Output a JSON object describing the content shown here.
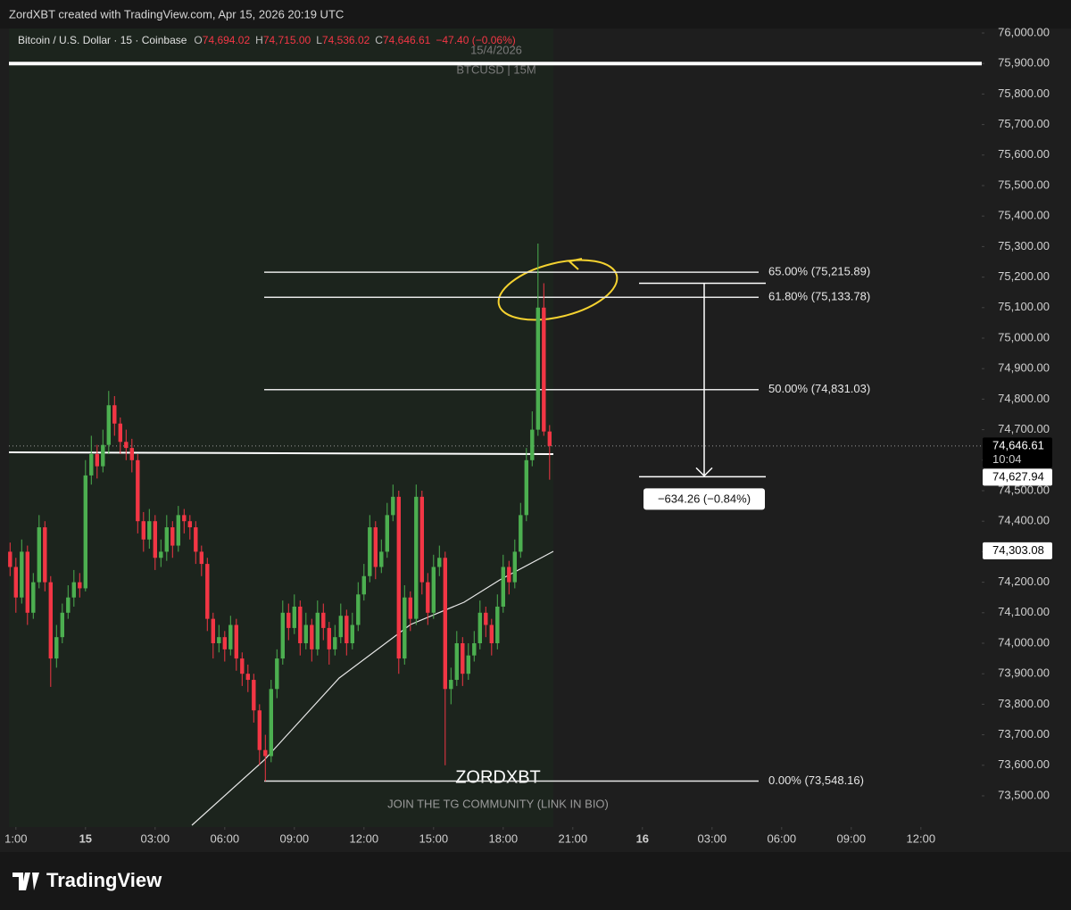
{
  "chart_data": {
    "type": "candlestick",
    "header": "ZordXBT created with TradingView.com, Apr 15, 2026 20:19 UTC",
    "legend": {
      "symbol": "Bitcoin / U.S. Dollar · 15 · Coinbase",
      "o": "O",
      "open": "74,694.02",
      "h": "H",
      "high": "74,715.00",
      "l": "L",
      "low": "74,536.02",
      "c": "C",
      "close": "74,646.61",
      "change": "−47.40 (−0.06%)"
    },
    "watermark": [
      "15/4/2026",
      "BTCUSD | 15M"
    ],
    "signature": "ZORDXBT",
    "promo": "JOIN THE TG COMMUNITY (LINK IN BIO)",
    "brand": "TradingView",
    "colors": {
      "up": "#4caf50",
      "down": "#f23645"
    },
    "xlim": [
      -3.3,
      38.7
    ],
    "ylim": [
      73400,
      76000
    ],
    "xticks": [
      {
        "value": -3,
        "label": "1:00"
      },
      {
        "value": 0,
        "label": "15"
      },
      {
        "value": 3,
        "label": "03:00"
      },
      {
        "value": 6,
        "label": "06:00"
      },
      {
        "value": 9,
        "label": "09:00"
      },
      {
        "value": 12,
        "label": "12:00"
      },
      {
        "value": 15,
        "label": "15:00"
      },
      {
        "value": 18,
        "label": "18:00"
      },
      {
        "value": 21,
        "label": "21:00"
      },
      {
        "value": 24,
        "label": "16"
      },
      {
        "value": 27,
        "label": "03:00"
      },
      {
        "value": 30,
        "label": "06:00"
      },
      {
        "value": 33,
        "label": "09:00"
      },
      {
        "value": 36,
        "label": "12:00"
      }
    ],
    "yticks": [
      {
        "value": 76000,
        "label": "76,000.00"
      },
      {
        "value": 75900,
        "label": "75,900.00"
      },
      {
        "value": 75800,
        "label": "75,800.00"
      },
      {
        "value": 75700,
        "label": "75,700.00"
      },
      {
        "value": 75600,
        "label": "75,600.00"
      },
      {
        "value": 75500,
        "label": "75,500.00"
      },
      {
        "value": 75400,
        "label": "75,400.00"
      },
      {
        "value": 75300,
        "label": "75,300.00"
      },
      {
        "value": 75200,
        "label": "75,200.00"
      },
      {
        "value": 75100,
        "label": "75,100.00"
      },
      {
        "value": 75000,
        "label": "75,000.00"
      },
      {
        "value": 74900,
        "label": "74,900.00"
      },
      {
        "value": 74800,
        "label": "74,800.00"
      },
      {
        "value": 74700,
        "label": "74,700.00"
      },
      {
        "value": 74600,
        "label": "74,600.00"
      },
      {
        "value": 74500,
        "label": "74,500.00"
      },
      {
        "value": 74400,
        "label": "74,400.00"
      },
      {
        "value": 74300,
        "label": "74,300.00"
      },
      {
        "value": 74200,
        "label": "74,200.00"
      },
      {
        "value": 74100,
        "label": "74,100.00"
      },
      {
        "value": 74000,
        "label": "74,000.00"
      },
      {
        "value": 73900,
        "label": "73,900.00"
      },
      {
        "value": 73800,
        "label": "73,800.00"
      },
      {
        "value": 73700,
        "label": "73,700.00"
      },
      {
        "value": 73600,
        "label": "73,600.00"
      },
      {
        "value": 73500,
        "label": "73,500.00"
      }
    ],
    "resistance": 75900,
    "fib_levels": [
      {
        "value": 75215.89,
        "label": "65.00% (75,215.89)"
      },
      {
        "value": 75133.78,
        "label": "61.80% (75,133.78)"
      },
      {
        "value": 74831.03,
        "label": "50.00% (74,831.03)"
      },
      {
        "value": 73548.16,
        "label": "0.00% (73,548.16)"
      }
    ],
    "price_badges": [
      {
        "value": 74646.61,
        "label": "74,646.61",
        "sub": "10:04"
      },
      {
        "value": 74627.94,
        "label": "74,627.94"
      },
      {
        "value": 74303.08,
        "label": "74,303.08"
      }
    ],
    "measure": {
      "top": 75180,
      "bottom": 74545.74,
      "label": "−634.26 (−0.84%)"
    },
    "x": [
      -3.25,
      -3,
      -2.75,
      -2.5,
      -2.25,
      -2,
      -1.75,
      -1.5,
      -1.25,
      -1,
      -0.75,
      -0.5,
      -0.25,
      0,
      0.25,
      0.5,
      0.75,
      1,
      1.25,
      1.5,
      1.75,
      2,
      2.25,
      2.5,
      2.75,
      3,
      3.25,
      3.5,
      3.75,
      4,
      4.25,
      4.5,
      4.75,
      5,
      5.25,
      5.5,
      5.75,
      6,
      6.25,
      6.5,
      6.75,
      7,
      7.25,
      7.5,
      7.75,
      8,
      8.25,
      8.5,
      8.75,
      9,
      9.25,
      9.5,
      9.75,
      10,
      10.25,
      10.5,
      10.75,
      11,
      11.25,
      11.5,
      11.75,
      12,
      12.25,
      12.5,
      12.75,
      13,
      13.25,
      13.5,
      13.75,
      14,
      14.25,
      14.5,
      14.75,
      15,
      15.25,
      15.5,
      15.75,
      16,
      16.25,
      16.5,
      16.75,
      17,
      17.25,
      17.5,
      17.75,
      18,
      18.25,
      18.5,
      18.75,
      19,
      19.25,
      19.5,
      19.75,
      20
    ],
    "candles": [
      [
        74300,
        74330,
        74220,
        74250
      ],
      [
        74250,
        74280,
        74100,
        74150
      ],
      [
        74150,
        74340,
        74130,
        74300
      ],
      [
        74300,
        74320,
        74060,
        74100
      ],
      [
        74100,
        74230,
        74080,
        74200
      ],
      [
        74200,
        74420,
        74180,
        74380
      ],
      [
        74380,
        74400,
        74170,
        74200
      ],
      [
        74200,
        74220,
        73857,
        73950
      ],
      [
        73950,
        74060,
        73920,
        74020
      ],
      [
        74020,
        74130,
        74000,
        74100
      ],
      [
        74100,
        74190,
        74080,
        74150
      ],
      [
        74150,
        74240,
        74120,
        74200
      ],
      [
        74200,
        74230,
        74150,
        74180
      ],
      [
        74180,
        74600,
        74170,
        74550
      ],
      [
        74550,
        74680,
        74520,
        74620
      ],
      [
        74620,
        74650,
        74540,
        74580
      ],
      [
        74580,
        74700,
        74560,
        74650
      ],
      [
        74650,
        74827,
        74620,
        74780
      ],
      [
        74780,
        74810,
        74680,
        74720
      ],
      [
        74720,
        74740,
        74620,
        74660
      ],
      [
        74660,
        74700,
        74600,
        74640
      ],
      [
        74640,
        74670,
        74560,
        74600
      ],
      [
        74600,
        74620,
        74360,
        74400
      ],
      [
        74400,
        74430,
        74300,
        74340
      ],
      [
        74340,
        74440,
        74310,
        74400
      ],
      [
        74400,
        74420,
        74240,
        74280
      ],
      [
        74280,
        74340,
        74250,
        74300
      ],
      [
        74300,
        74420,
        74270,
        74380
      ],
      [
        74380,
        74400,
        74280,
        74320
      ],
      [
        74320,
        74450,
        74300,
        74420
      ],
      [
        74420,
        74440,
        74360,
        74400
      ],
      [
        74400,
        74420,
        74340,
        74380
      ],
      [
        74380,
        74400,
        74260,
        74300
      ],
      [
        74300,
        74320,
        74220,
        74260
      ],
      [
        74260,
        74280,
        74040,
        74080
      ],
      [
        74080,
        74100,
        73950,
        74000
      ],
      [
        74000,
        74060,
        73970,
        74020
      ],
      [
        74020,
        74040,
        73940,
        73980
      ],
      [
        73980,
        74090,
        73960,
        74060
      ],
      [
        74060,
        74080,
        73910,
        73950
      ],
      [
        73950,
        73970,
        73860,
        73900
      ],
      [
        73900,
        73930,
        73840,
        73880
      ],
      [
        73880,
        73900,
        73740,
        73780
      ],
      [
        73780,
        73800,
        73600,
        73650
      ],
      [
        73650,
        73700,
        73548.16,
        73630
      ],
      [
        73630,
        73880,
        73610,
        73850
      ],
      [
        73850,
        73980,
        73820,
        73950
      ],
      [
        73950,
        74140,
        73930,
        74100
      ],
      [
        74100,
        74130,
        74010,
        74050
      ],
      [
        74050,
        74160,
        74030,
        74120
      ],
      [
        74120,
        74140,
        73960,
        74000
      ],
      [
        74000,
        74100,
        73980,
        74060
      ],
      [
        74060,
        74080,
        73940,
        73980
      ],
      [
        73980,
        74140,
        73960,
        74100
      ],
      [
        74100,
        74130,
        74010,
        74050
      ],
      [
        74050,
        74070,
        73930,
        73980
      ],
      [
        73980,
        74060,
        73960,
        74020
      ],
      [
        74020,
        74130,
        74000,
        74090
      ],
      [
        74090,
        74110,
        73960,
        74000
      ],
      [
        74000,
        74100,
        73980,
        74060
      ],
      [
        74060,
        74200,
        74040,
        74160
      ],
      [
        74160,
        74260,
        74140,
        74220
      ],
      [
        74220,
        74420,
        74200,
        74380
      ],
      [
        74380,
        74400,
        74210,
        74250
      ],
      [
        74250,
        74340,
        74230,
        74300
      ],
      [
        74300,
        74460,
        74280,
        74420
      ],
      [
        74420,
        74520,
        74400,
        74480
      ],
      [
        74480,
        74500,
        73900,
        73950
      ],
      [
        73950,
        74190,
        73930,
        74150
      ],
      [
        74150,
        74170,
        74040,
        74080
      ],
      [
        74080,
        74520,
        74060,
        74480
      ],
      [
        74480,
        74500,
        74160,
        74200
      ],
      [
        74200,
        74230,
        74060,
        74100
      ],
      [
        74100,
        74290,
        74080,
        74250
      ],
      [
        74250,
        74320,
        74220,
        74280
      ],
      [
        74280,
        74300,
        73600,
        73850
      ],
      [
        73850,
        73920,
        73800,
        73880
      ],
      [
        73880,
        74040,
        73860,
        74000
      ],
      [
        74000,
        74020,
        73860,
        73900
      ],
      [
        73900,
        74000,
        73880,
        73960
      ],
      [
        73960,
        74040,
        73940,
        74000
      ],
      [
        74000,
        74140,
        73980,
        74100
      ],
      [
        74100,
        74120,
        74020,
        74060
      ],
      [
        74060,
        74080,
        73960,
        74000
      ],
      [
        74000,
        74160,
        73980,
        74120
      ],
      [
        74120,
        74290,
        74100,
        74250
      ],
      [
        74250,
        74270,
        74160,
        74200
      ],
      [
        74200,
        74340,
        74180,
        74300
      ],
      [
        74300,
        74460,
        74280,
        74420
      ],
      [
        74420,
        74640,
        74400,
        74600
      ],
      [
        74600,
        74760,
        74580,
        74700
      ],
      [
        74700,
        75310,
        74680,
        75100
      ],
      [
        75100,
        75180,
        74680,
        74694.02
      ],
      [
        74694.02,
        74715,
        74536.02,
        74646.61
      ]
    ]
  }
}
